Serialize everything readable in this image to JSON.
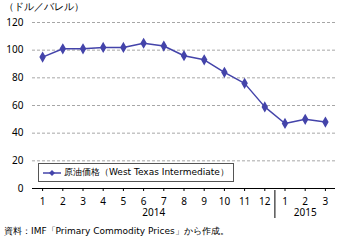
{
  "chart_data": {
    "type": "line",
    "y_label": "（ドル／バレル）",
    "categories": [
      "1",
      "2",
      "3",
      "4",
      "5",
      "6",
      "7",
      "8",
      "9",
      "10",
      "11",
      "12",
      "1",
      "2",
      "3"
    ],
    "x_groups": [
      {
        "label": "2014",
        "size": 12
      },
      {
        "label": "2015",
        "size": 3
      }
    ],
    "series": [
      {
        "name": "原油価格（West Texas Intermediate）",
        "color": "#4444aa",
        "marker": "diamond",
        "values": [
          95,
          101,
          101,
          102,
          102,
          105,
          103,
          96,
          93,
          84,
          76,
          59,
          47,
          50,
          48
        ]
      }
    ],
    "ylim": [
      0,
      120
    ],
    "yticks": [
      0,
      20,
      40,
      60,
      80,
      100,
      120
    ],
    "grid": true,
    "legend": "lower left",
    "source": "資料：IMF「Primary Commodity Prices」から作成。"
  }
}
